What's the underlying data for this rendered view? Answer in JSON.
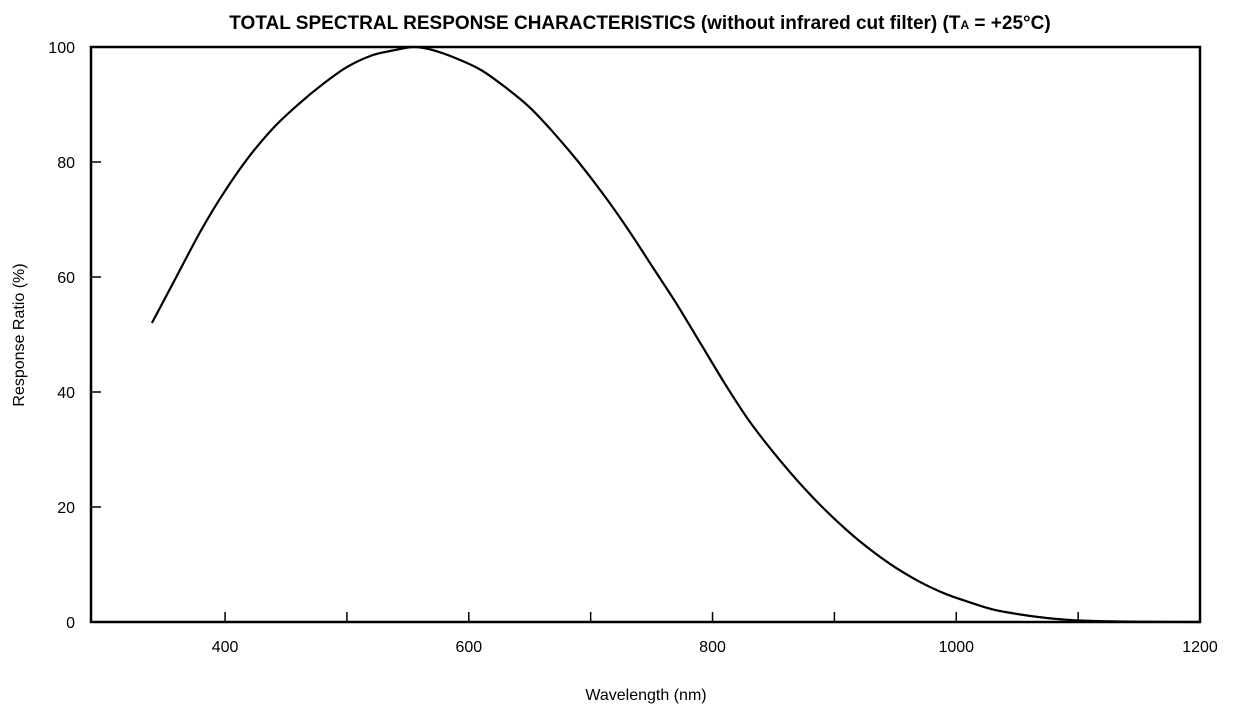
{
  "chart_data": {
    "type": "line",
    "title": "TOTAL SPECTRAL RESPONSE CHARACTERISTICS (without infrared cut filter) (TA = +25°C)",
    "title_parts": {
      "main": "TOTAL SPECTRAL RESPONSE CHARACTERISTICS (without infrared cut filter) (T",
      "subscript": "A",
      "tail": " = +25°C)"
    },
    "xlabel": "Wavelength (nm)",
    "ylabel": "Response Ratio (%)",
    "xlim": [
      290,
      1200
    ],
    "ylim": [
      0,
      100
    ],
    "x_ticks": [
      400,
      600,
      800,
      1000,
      1200
    ],
    "x_minor_ticks": [
      500,
      700,
      900,
      1100
    ],
    "y_ticks": [
      0,
      20,
      40,
      60,
      80,
      100
    ],
    "grid": false,
    "series": [
      {
        "x": [
          340,
          360,
          380,
          400,
          420,
          440,
          460,
          480,
          500,
          520,
          540,
          555,
          570,
          590,
          610,
          630,
          650,
          670,
          690,
          710,
          730,
          750,
          770,
          790,
          810,
          830,
          850,
          870,
          890,
          910,
          930,
          950,
          970,
          990,
          1010,
          1030,
          1050,
          1070,
          1090,
          1110,
          1130,
          1150,
          1170,
          1200
        ],
        "y": [
          52,
          60,
          68,
          75,
          81,
          86,
          90,
          93.5,
          96.5,
          98.5,
          99.5,
          100,
          99.5,
          98,
          96,
          93,
          89.5,
          85,
          80,
          74.5,
          68.5,
          62,
          55.5,
          48.5,
          41.5,
          35,
          29.5,
          24.5,
          20,
          16,
          12.5,
          9.5,
          7,
          5,
          3.5,
          2.2,
          1.4,
          0.8,
          0.4,
          0.2,
          0.1,
          0.05,
          0.02,
          0
        ]
      }
    ]
  }
}
